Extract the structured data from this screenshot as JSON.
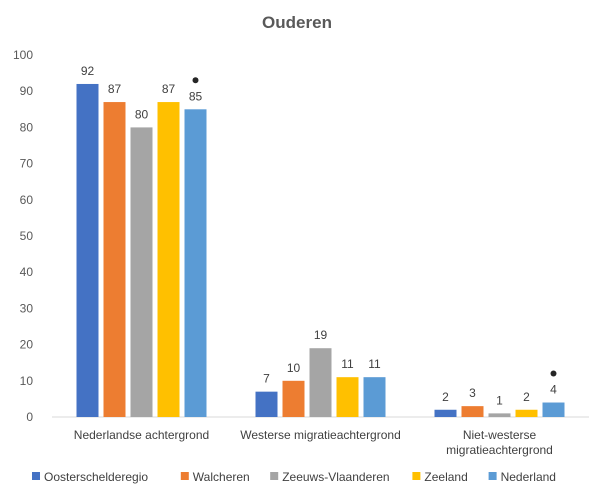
{
  "chart_data": {
    "type": "bar",
    "title": "Ouderen",
    "xlabel": "",
    "ylabel": "",
    "ylim": [
      0,
      100
    ],
    "yticks": [
      0,
      10,
      20,
      30,
      40,
      50,
      60,
      70,
      80,
      90,
      100
    ],
    "grid": false,
    "legend_position": "bottom",
    "categories": [
      [
        "Nederlandse achtergrond"
      ],
      [
        "Westerse migratieachtergrond"
      ],
      [
        "Niet-westerse",
        "migratieachtergrond"
      ]
    ],
    "series": [
      {
        "name": "Oosterschelderegio",
        "color": "#4472C4",
        "values": [
          92,
          7,
          2
        ]
      },
      {
        "name": "Walcheren",
        "color": "#ED7D31",
        "values": [
          87,
          10,
          3
        ]
      },
      {
        "name": "Zeeuws-Vlaanderen",
        "color": "#A5A5A5",
        "values": [
          80,
          19,
          1
        ]
      },
      {
        "name": "Zeeland",
        "color": "#FFC000",
        "values": [
          87,
          11,
          2
        ]
      },
      {
        "name": "Nederland",
        "color": "#5B9BD5",
        "values": [
          85,
          11,
          4
        ]
      }
    ],
    "significance_markers": [
      {
        "series": "Nederland",
        "category_index": 0
      },
      {
        "series": "Nederland",
        "category_index": 2
      }
    ]
  }
}
